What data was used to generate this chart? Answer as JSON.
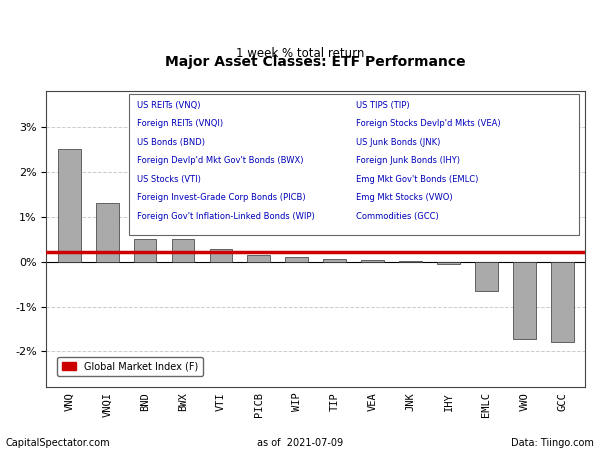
{
  "title": "Major Asset Classes: ETF Performance",
  "subtitle": "1 week % total return",
  "categories": [
    "VNQ",
    "VNQI",
    "BND",
    "BWX",
    "VTI",
    "PICB",
    "WIP",
    "TIP",
    "VEA",
    "JNK",
    "IHY",
    "EMLC",
    "VWO",
    "GCC"
  ],
  "values": [
    2.52,
    1.3,
    0.5,
    0.5,
    0.28,
    0.14,
    0.1,
    0.05,
    0.03,
    0.02,
    -0.05,
    -0.65,
    -1.72,
    -1.8
  ],
  "bar_color": "#aaaaaa",
  "bar_edge_color": "#333333",
  "global_market_index": 0.21,
  "gmi_color": "#cc0000",
  "gmi_label": "Global Market Index (F)",
  "legend_text_left": [
    "US REITs (VNQ)",
    "Foreign REITs (VNQI)",
    "US Bonds (BND)",
    "Foreign Devlp'd Mkt Gov't Bonds (BWX)",
    "US Stocks (VTI)",
    "Foreign Invest-Grade Corp Bonds (PICB)",
    "Foreign Gov't Inflation-Linked Bonds (WIP)"
  ],
  "legend_text_right": [
    "US TIPS (TIP)",
    "Foreign Stocks Devlp'd Mkts (VEA)",
    "US Junk Bonds (JNK)",
    "Foreign Junk Bonds (IHY)",
    "Emg Mkt Gov't Bonds (EMLC)",
    "Emg Mkt Stocks (VWO)",
    "Commodities (GCC)"
  ],
  "legend_text_color": "#0000bb",
  "footer_left": "CapitalSpectator.com",
  "footer_center": "as of  2021-07-09",
  "footer_right": "Data: Tiingo.com",
  "ylim": [
    -2.8,
    3.8
  ],
  "yticks": [
    -2.0,
    -1.0,
    0.0,
    1.0,
    2.0,
    3.0
  ],
  "background_color": "#ffffff",
  "grid_color": "#cccccc"
}
